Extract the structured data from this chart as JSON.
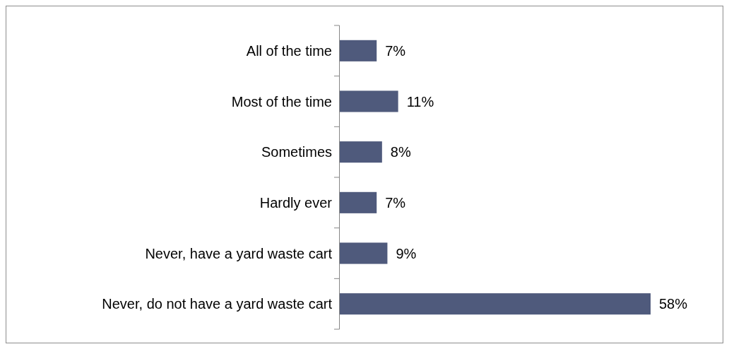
{
  "chart_data": {
    "type": "bar",
    "orientation": "horizontal",
    "categories": [
      "All of the time",
      "Most of the time",
      "Sometimes",
      "Hardly ever",
      "Never, have a yard waste cart",
      "Never, do not have a yard waste cart"
    ],
    "values": [
      7,
      11,
      8,
      7,
      9,
      58
    ],
    "color": "#4f5a7c",
    "value_labels": [
      "7%",
      "11%",
      "8%",
      "7%",
      "9%",
      "58%"
    ]
  }
}
